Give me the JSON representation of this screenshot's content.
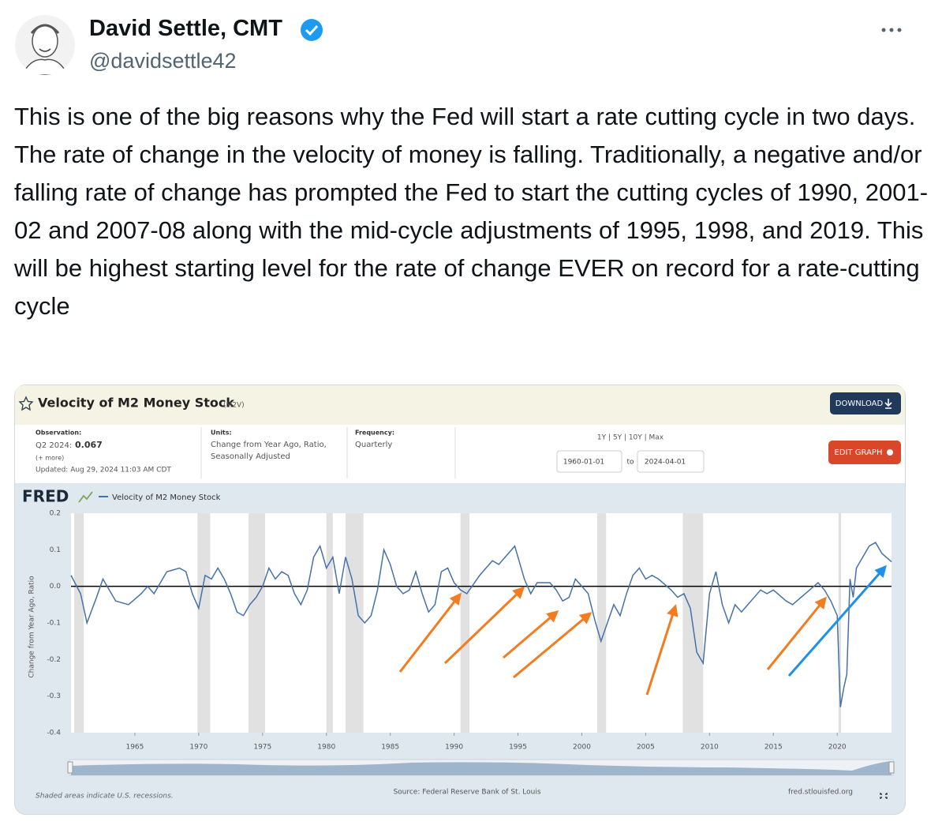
{
  "author": {
    "name": "David Settle, CMT",
    "handle": "@davidsettle42"
  },
  "tweet_text": "This is one of the big reasons why the Fed will start a rate cutting cycle in two days. The rate of change in the velocity of money is falling. Traditionally, a negative and/or falling rate of change has prompted the Fed to start the cutting cycles of 1990, 2001-02 and 2007-08 along with the mid-cycle adjustments of 1995, 1998, and 2019. This will be highest starting level for the rate of change EVER on record for a rate-cutting cycle",
  "fred": {
    "title": "Velocity of M2 Money Stock",
    "code": "(M2V)",
    "download": "DOWNLOAD",
    "observation_label": "Observation:",
    "observation_period": "Q2 2024:",
    "observation_value": "0.067",
    "more": "(+ more)",
    "updated": "Updated: Aug 29, 2024 11:03 AM CDT",
    "units_label": "Units:",
    "units": [
      "Change from Year Ago, Ratio,",
      "Seasonally Adjusted"
    ],
    "frequency_label": "Frequency:",
    "frequency": "Quarterly",
    "ranges": "1Y | 5Y | 10Y | Max",
    "date_from": "1960-01-01",
    "date_to_word": "to",
    "date_to": "2024-04-01",
    "edit": "EDIT GRAPH",
    "logo": "FRED",
    "recession_note": "Shaded areas indicate U.S. recessions.",
    "source": "Source: Federal Reserve Bank of St. Louis",
    "site": "fred.stlouisfed.org"
  },
  "chart_data": {
    "type": "line",
    "ylabel": "Change from Year Ago, Ratio",
    "x": [
      1960.0,
      1960.75,
      1961.25,
      1962.0,
      1962.5,
      1963.5,
      1964.5,
      1965.5,
      1966.0,
      1966.5,
      1967.5,
      1968.5,
      1969.0,
      1969.5,
      1970.0,
      1970.5,
      1971.0,
      1971.5,
      1972.0,
      1972.5,
      1973.0,
      1973.5,
      1974.0,
      1974.5,
      1975.0,
      1975.5,
      1976.0,
      1976.5,
      1977.0,
      1977.5,
      1978.0,
      1978.5,
      1979.0,
      1979.5,
      1980.0,
      1980.5,
      1981.0,
      1981.5,
      1982.0,
      1982.5,
      1983.0,
      1983.5,
      1984.0,
      1984.5,
      1985.0,
      1985.5,
      1986.0,
      1986.5,
      1987.0,
      1987.5,
      1988.0,
      1988.5,
      1989.0,
      1989.5,
      1990.0,
      1990.5,
      1991.0,
      1992.0,
      1993.0,
      1993.5,
      1994.0,
      1994.75,
      1995.5,
      1996.0,
      1996.5,
      1997.5,
      1998.0,
      1998.5,
      1999.0,
      1999.5,
      2000.0,
      2000.5,
      2001.0,
      2001.5,
      2002.0,
      2002.5,
      2003.0,
      2003.5,
      2004.0,
      2004.5,
      2005.0,
      2005.5,
      2006.0,
      2007.0,
      2007.5,
      2008.0,
      2008.5,
      2009.0,
      2009.5,
      2010.0,
      2010.5,
      2011.0,
      2011.5,
      2012.0,
      2012.5,
      2013.0,
      2013.5,
      2014.0,
      2014.5,
      2015.0,
      2016.0,
      2016.5,
      2017.5,
      2018.5,
      2019.0,
      2019.5,
      2020.0,
      2020.25,
      2020.5,
      2020.75,
      2021.0,
      2021.25,
      2021.5,
      2022.0,
      2022.5,
      2023.0,
      2023.5,
      2024.25
    ],
    "series": [
      {
        "name": "Velocity of M2 Money Stock",
        "color": "#4572a7",
        "values": [
          0.03,
          -0.02,
          -0.1,
          -0.03,
          0.02,
          -0.04,
          -0.05,
          -0.02,
          0.0,
          -0.02,
          0.04,
          0.05,
          0.04,
          -0.02,
          -0.06,
          0.03,
          0.02,
          0.05,
          0.02,
          -0.02,
          -0.07,
          -0.08,
          -0.05,
          -0.03,
          0.0,
          0.05,
          0.02,
          0.04,
          0.03,
          -0.02,
          -0.05,
          -0.01,
          0.08,
          0.11,
          0.05,
          0.08,
          -0.02,
          0.08,
          0.02,
          -0.08,
          -0.1,
          -0.08,
          -0.01,
          0.1,
          0.06,
          0.0,
          -0.02,
          -0.01,
          0.04,
          -0.02,
          -0.07,
          -0.05,
          0.04,
          0.05,
          0.01,
          -0.01,
          -0.02,
          0.03,
          0.07,
          0.06,
          0.08,
          0.11,
          0.02,
          -0.02,
          0.01,
          0.01,
          -0.01,
          -0.04,
          -0.03,
          0.02,
          0.0,
          -0.02,
          -0.09,
          -0.15,
          -0.1,
          -0.05,
          -0.08,
          -0.02,
          0.03,
          0.05,
          0.02,
          0.03,
          0.02,
          -0.01,
          -0.03,
          -0.02,
          -0.06,
          -0.18,
          -0.21,
          -0.02,
          0.04,
          -0.05,
          -0.1,
          -0.05,
          -0.07,
          -0.05,
          -0.03,
          -0.01,
          -0.02,
          -0.01,
          -0.04,
          -0.05,
          -0.02,
          0.01,
          -0.01,
          -0.04,
          -0.08,
          -0.33,
          -0.28,
          -0.24,
          0.02,
          -0.03,
          0.05,
          0.08,
          0.11,
          0.12,
          0.09,
          0.067
        ]
      }
    ],
    "recessions": [
      [
        1960.25,
        1961.0
      ],
      [
        1969.9,
        1970.9
      ],
      [
        1973.9,
        1975.2
      ],
      [
        1980.0,
        1980.5
      ],
      [
        1981.5,
        1982.9
      ],
      [
        1990.5,
        1991.2
      ],
      [
        2001.2,
        2001.9
      ],
      [
        2007.9,
        2009.5
      ],
      [
        2020.1,
        2020.3
      ]
    ],
    "recession_color": "#e1e1e1",
    "xlim": [
      1960,
      2024.25
    ],
    "xticks": [
      1965,
      1970,
      1975,
      1980,
      1985,
      1990,
      1995,
      2000,
      2005,
      2010,
      2015,
      2020
    ],
    "ylim": [
      -0.4,
      0.2
    ],
    "yticks": [
      0.2,
      0.1,
      {
        "value": 0,
        "label": "0.0"
      },
      -0.1,
      -0.2,
      -0.3,
      -0.4
    ],
    "grid": false
  }
}
